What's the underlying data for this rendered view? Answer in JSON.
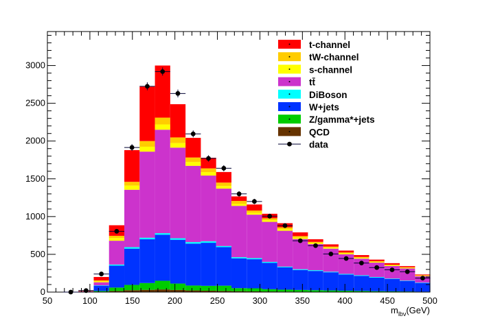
{
  "chart_data": {
    "type": "bar",
    "stacked": true,
    "xlabel": "m",
    "xlabel_sub": "lbν",
    "xlabel_unit": "(GeV)",
    "xlim": [
      50,
      500
    ],
    "ylim": [
      0,
      3450
    ],
    "x_ticks": [
      50,
      100,
      150,
      200,
      250,
      300,
      350,
      400,
      450,
      500
    ],
    "y_ticks": [
      0,
      500,
      1000,
      1500,
      2000,
      2500,
      3000
    ],
    "x": [
      77.5,
      95.5,
      113.5,
      131.5,
      149.5,
      167.5,
      185.5,
      203.5,
      221.5,
      239.5,
      257.5,
      275.5,
      293.5,
      311.5,
      329.5,
      347.5,
      365.5,
      383.5,
      401.5,
      419.5,
      437.5,
      455.5,
      473.5,
      491.5
    ],
    "series": [
      {
        "name": "QCD",
        "color": "#663300",
        "values": [
          0,
          0,
          5,
          15,
          25,
          30,
          35,
          28,
          22,
          18,
          15,
          12,
          10,
          8,
          7,
          6,
          5,
          4,
          3,
          3,
          2,
          2,
          2,
          1
        ]
      },
      {
        "name": "Z/gamma*+jets",
        "color": "#00cc00",
        "values": [
          0,
          2,
          10,
          45,
          70,
          90,
          115,
          85,
          65,
          65,
          70,
          40,
          40,
          30,
          25,
          22,
          20,
          18,
          15,
          12,
          10,
          8,
          6,
          5
        ]
      },
      {
        "name": "W+jets",
        "color": "#0033ff",
        "values": [
          0,
          3,
          70,
          290,
          480,
          580,
          610,
          580,
          555,
          570,
          510,
          395,
          385,
          350,
          295,
          265,
          255,
          240,
          215,
          200,
          180,
          165,
          140,
          115
        ]
      },
      {
        "name": "DiBoson",
        "color": "#00ffff",
        "values": [
          0,
          0,
          5,
          15,
          20,
          20,
          20,
          20,
          20,
          20,
          15,
          15,
          15,
          12,
          10,
          10,
          10,
          8,
          8,
          8,
          8,
          5,
          5,
          5
        ]
      },
      {
        "name": "tt̄",
        "color": "#cc33cc",
        "values": [
          0,
          5,
          40,
          315,
          760,
          1140,
          1370,
          1200,
          1010,
          870,
          760,
          680,
          575,
          530,
          475,
          400,
          345,
          305,
          260,
          220,
          190,
          165,
          160,
          85
        ]
      },
      {
        "name": "s-channel",
        "color": "#ffff00",
        "values": [
          0,
          1,
          10,
          35,
          55,
          65,
          70,
          60,
          50,
          45,
          35,
          25,
          25,
          22,
          20,
          18,
          15,
          12,
          12,
          10,
          10,
          8,
          8,
          5
        ]
      },
      {
        "name": "tW-channel",
        "color": "#ffcc00",
        "values": [
          0,
          2,
          15,
          30,
          50,
          75,
          90,
          75,
          60,
          50,
          45,
          40,
          30,
          25,
          25,
          20,
          15,
          15,
          12,
          12,
          10,
          10,
          8,
          7
        ]
      },
      {
        "name": "t-channel",
        "color": "#ff0000",
        "values": [
          0,
          5,
          45,
          140,
          420,
          720,
          690,
          440,
          260,
          140,
          140,
          60,
          80,
          60,
          55,
          50,
          35,
          30,
          25,
          25,
          20,
          20,
          15,
          10
        ]
      }
    ],
    "data": {
      "name": "data",
      "values": [
        0,
        20,
        240,
        805,
        1915,
        2725,
        2920,
        2630,
        2095,
        1770,
        1640,
        1300,
        1200,
        1005,
        880,
        680,
        615,
        505,
        445,
        385,
        325,
        295,
        270,
        185
      ]
    },
    "legend_position": "top-right",
    "grid": false
  }
}
